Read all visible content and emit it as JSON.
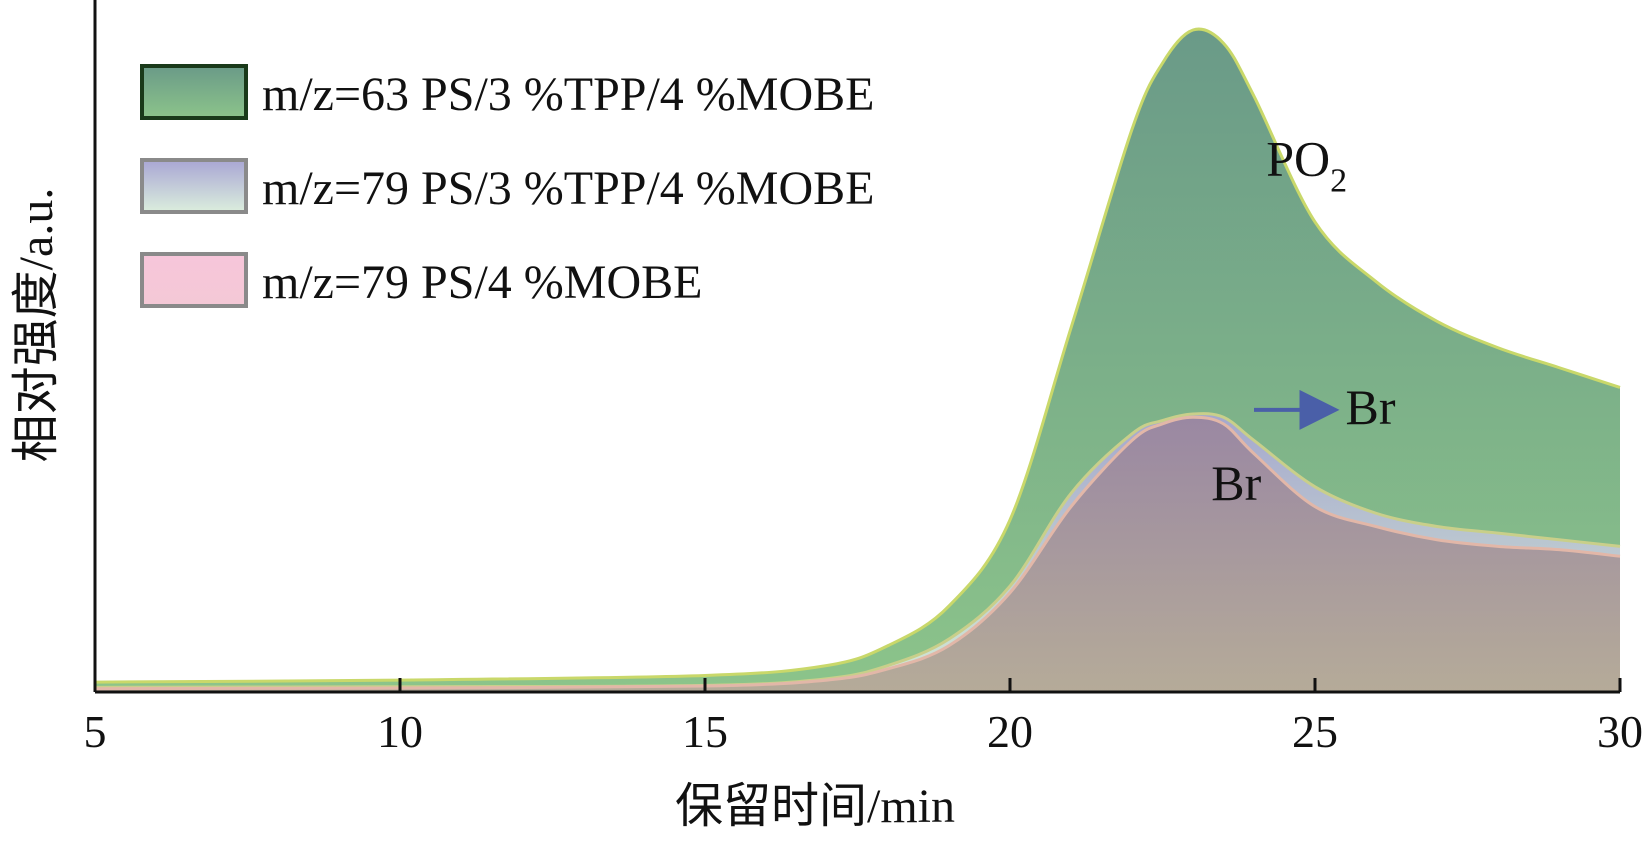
{
  "chart_data": {
    "type": "area",
    "xlabel": "保留时间/min",
    "ylabel": "相对强度/a.u.",
    "xlim": [
      5,
      30
    ],
    "ylim": [
      0,
      100
    ],
    "xticks": [
      "5",
      "10",
      "15",
      "20",
      "25",
      "30"
    ],
    "grid": false,
    "legend_position": "top-left",
    "series": [
      {
        "name": "m/z=63 PS/3 %TPP/4 %MOBE",
        "color_top": "#6a9a88",
        "color_bottom": "#8cc48a",
        "x": [
          5,
          10,
          15,
          17,
          18,
          19,
          20,
          21,
          22,
          22.5,
          23,
          23.5,
          24,
          25,
          26,
          27,
          28,
          29,
          30
        ],
        "values": [
          1.5,
          1.8,
          2.5,
          4,
          7,
          13,
          26,
          55,
          85,
          95,
          100,
          98,
          90,
          71,
          62,
          56,
          52,
          49,
          46
        ]
      },
      {
        "name": "m/z=79 PS/3 %TPP/4 %MOBE",
        "color_top": "#a9a6d4",
        "color_bottom": "#dbeedd",
        "x": [
          5,
          10,
          15,
          17,
          18,
          19,
          20,
          21,
          22,
          22.5,
          23,
          23.5,
          24,
          25,
          26,
          27,
          28,
          29,
          30
        ],
        "values": [
          0.7,
          0.8,
          1,
          2,
          4,
          8,
          16,
          30,
          39,
          41,
          42,
          41.5,
          38,
          31,
          27,
          25,
          24,
          23,
          22
        ]
      },
      {
        "name": "m/z=79 PS/4 %MOBE",
        "color_top": "#f7c6da",
        "color_bottom": "#f4c8d6",
        "x": [
          5,
          10,
          15,
          17,
          18,
          19,
          20,
          21,
          22,
          22.5,
          23,
          23.5,
          24,
          25,
          26,
          27,
          28,
          29,
          30
        ],
        "values": [
          0.5,
          0.6,
          0.9,
          1.8,
          3.5,
          7,
          15,
          28,
          38,
          40.5,
          41.5,
          40.5,
          36,
          28,
          25,
          23,
          22,
          21.5,
          20.5
        ]
      }
    ],
    "annotations": [
      {
        "text": "PO",
        "sub": "2",
        "x": 24.2,
        "y": 78
      },
      {
        "text": "Br",
        "x": 25.5,
        "y": 40.5,
        "arrow_from_x": 24.0,
        "arrow_to_x": 25.5
      },
      {
        "text": "Br",
        "x": 23.3,
        "y": 29
      }
    ]
  }
}
